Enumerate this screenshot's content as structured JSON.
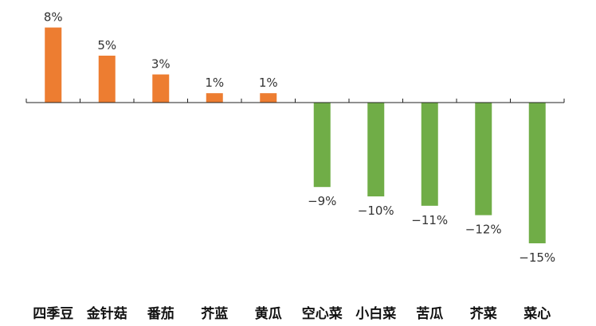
{
  "chart_data": {
    "type": "bar",
    "title": "",
    "xlabel": "",
    "ylabel": "",
    "categories": [
      "四季豆",
      "金针菇",
      "番茄",
      "芥蓝",
      "黄瓜",
      "空心菜",
      "小白菜",
      "苦瓜",
      "芥菜",
      "菜心"
    ],
    "values": [
      8,
      5,
      3,
      1,
      1,
      -9,
      -10,
      -11,
      -12,
      -15
    ],
    "value_labels": [
      "8%",
      "5%",
      "3%",
      "1%",
      "1%",
      "−9%",
      "−10%",
      "−11%",
      "−12%",
      "−15%"
    ],
    "unit": "%",
    "ylim": [
      -15,
      8
    ],
    "grid": false,
    "legend": "none",
    "colors": {
      "positive": "#ED7D31",
      "negative": "#70AD47",
      "axis": "#222222"
    }
  }
}
